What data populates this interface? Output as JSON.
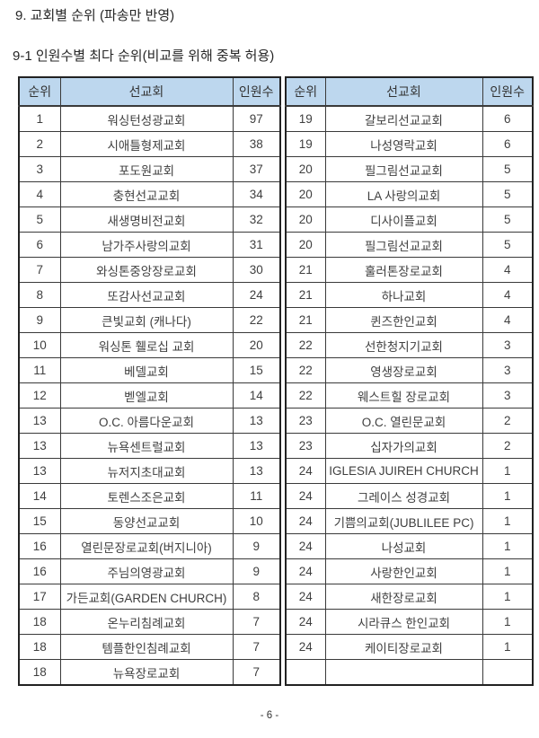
{
  "page": {
    "title": "9. 교회별 순위 (파송만 반영)",
    "subtitle": "9-1 인원수별 최다 순위(비교를 위해 중복 허용)",
    "page_number": "- 6 -"
  },
  "table": {
    "columns": [
      "순위",
      "선교회",
      "인원수"
    ],
    "header_bg": "#BDD7EE",
    "border_color": "#3a3a3a",
    "left_rows": [
      [
        "1",
        "워싱턴성광교회",
        "97"
      ],
      [
        "2",
        "시애틀형제교회",
        "38"
      ],
      [
        "3",
        "포도원교회",
        "37"
      ],
      [
        "4",
        "충현선교교회",
        "34"
      ],
      [
        "5",
        "새생명비전교회",
        "32"
      ],
      [
        "6",
        "남가주사랑의교회",
        "31"
      ],
      [
        "7",
        "와싱톤중앙장로교회",
        "30"
      ],
      [
        "8",
        "또감사선교교회",
        "24"
      ],
      [
        "9",
        "큰빛교회 (캐나다)",
        "22"
      ],
      [
        "10",
        "워싱톤 휄로십 교회",
        "20"
      ],
      [
        "11",
        "베델교회",
        "15"
      ],
      [
        "12",
        "벧엘교회",
        "14"
      ],
      [
        "13",
        "O.C. 아름다운교회",
        "13"
      ],
      [
        "13",
        "뉴욕센트럴교회",
        "13"
      ],
      [
        "13",
        "뉴저지초대교회",
        "13"
      ],
      [
        "14",
        "토렌스조은교회",
        "11"
      ],
      [
        "15",
        "동양선교교회",
        "10"
      ],
      [
        "16",
        "열린문장로교회(버지니아)",
        "9"
      ],
      [
        "16",
        "주님의영광교회",
        "9"
      ],
      [
        "17",
        "가든교회(GARDEN CHURCH)",
        "8"
      ],
      [
        "18",
        "온누리침례교회",
        "7"
      ],
      [
        "18",
        "템플한인침례교회",
        "7"
      ],
      [
        "18",
        "뉴욕장로교회",
        "7"
      ]
    ],
    "right_rows": [
      [
        "19",
        "갈보리선교교회",
        "6"
      ],
      [
        "19",
        "나성영락교회",
        "6"
      ],
      [
        "20",
        "필그림선교교회",
        "5"
      ],
      [
        "20",
        "LA 사랑의교회",
        "5"
      ],
      [
        "20",
        "디사이플교회",
        "5"
      ],
      [
        "20",
        "필그림선교교회",
        "5"
      ],
      [
        "21",
        "훌러톤장로교회",
        "4"
      ],
      [
        "21",
        "하나교회",
        "4"
      ],
      [
        "21",
        "퀸즈한인교회",
        "4"
      ],
      [
        "22",
        "선한청지기교회",
        "3"
      ],
      [
        "22",
        "영생장로교회",
        "3"
      ],
      [
        "22",
        "웨스트힐 장로교회",
        "3"
      ],
      [
        "23",
        "O.C. 열린문교회",
        "2"
      ],
      [
        "23",
        "십자가의교회",
        "2"
      ],
      [
        "24",
        "IGLESIA JUIREH CHURCH",
        "1"
      ],
      [
        "24",
        "그레이스 성경교회",
        "1"
      ],
      [
        "24",
        "기쁨의교회(JUBLILEE PC)",
        "1"
      ],
      [
        "24",
        "나성교회",
        "1"
      ],
      [
        "24",
        "사랑한인교회",
        "1"
      ],
      [
        "24",
        "새한장로교회",
        "1"
      ],
      [
        "24",
        "시라큐스 한인교회",
        "1"
      ],
      [
        "24",
        "케이티장로교회",
        "1"
      ],
      [
        "",
        "",
        ""
      ]
    ]
  }
}
